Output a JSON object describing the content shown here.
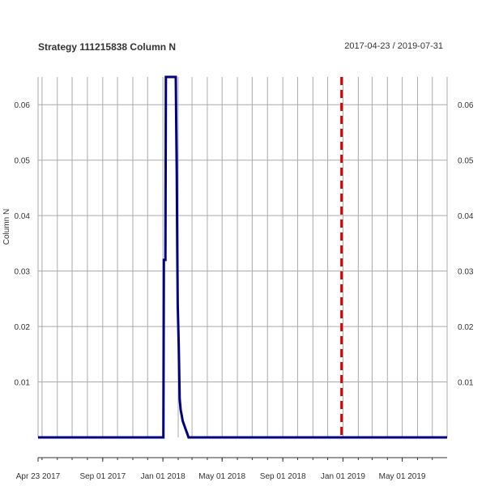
{
  "header": {
    "title": "Strategy 111215838 Column N",
    "date_range": "2017-04-23 / 2019-07-31"
  },
  "chart_data": {
    "type": "line",
    "title": "Strategy 111215838 Column N",
    "subtitle": "2017-04-23 / 2019-07-31",
    "ylabel": "Column N",
    "xlabel": "",
    "x_range": [
      "2017-04-23",
      "2019-07-31"
    ],
    "ylim": [
      0,
      0.065
    ],
    "y_ticks": [
      0.01,
      0.02,
      0.03,
      0.04,
      0.05,
      0.06
    ],
    "y_tick_labels": [
      "0.01",
      "0.02",
      "0.03",
      "0.04",
      "0.05",
      "0.06"
    ],
    "x_tick_labels": [
      {
        "date": "2017-04-23",
        "label": "Apr 23 2017"
      },
      {
        "date": "2017-09-01",
        "label": "Sep 01 2017"
      },
      {
        "date": "2018-01-01",
        "label": "Jan 01 2018"
      },
      {
        "date": "2018-05-01",
        "label": "May 01 2018"
      },
      {
        "date": "2018-09-01",
        "label": "Sep 01 2018"
      },
      {
        "date": "2019-01-01",
        "label": "Jan 01 2019"
      },
      {
        "date": "2019-05-01",
        "label": "May 01 2019"
      }
    ],
    "grid": true,
    "colors": {
      "series": "#000080",
      "event_line": "#e00000",
      "grid": "#aaaaaa"
    },
    "series": [
      {
        "x": [
          "2017-04-23",
          "2018-01-02",
          "2018-01-03",
          "2018-01-06",
          "2018-01-07",
          "2018-01-10",
          "2018-01-11",
          "2018-01-14",
          "2018-01-15",
          "2018-01-18",
          "2018-01-19",
          "2018-01-22",
          "2018-01-27",
          "2018-01-28",
          "2018-01-29",
          "2018-01-30",
          "2018-01-31",
          "2018-02-02",
          "2018-02-04",
          "2018-02-05",
          "2018-02-06",
          "2018-02-08",
          "2018-02-10",
          "2018-02-12",
          "2018-02-14",
          "2018-02-16",
          "2018-02-18",
          "2018-02-22",
          "2019-07-31"
        ],
        "values": [
          0,
          0,
          0.032,
          0.032,
          0.065,
          0.065,
          0.065,
          0.065,
          0.065,
          0.065,
          0.065,
          0.065,
          0.065,
          0.056,
          0.048,
          0.035,
          0.024,
          0.017,
          0.007,
          0.006,
          0.005,
          0.004,
          0.003,
          0.0025,
          0.002,
          0.0015,
          0.001,
          0,
          0
        ]
      }
    ],
    "event_line": {
      "date": "2018-12-29",
      "style": "dashed"
    }
  }
}
